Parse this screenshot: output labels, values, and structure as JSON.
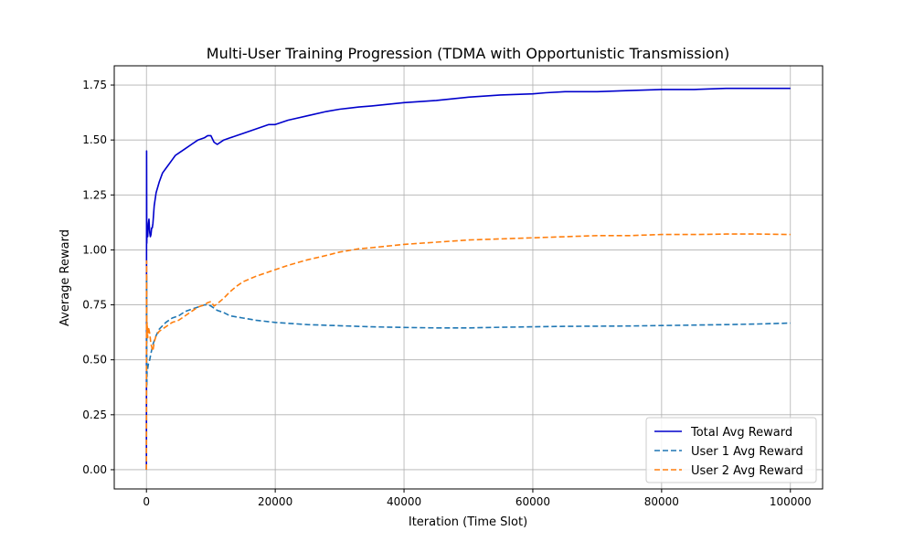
{
  "chart_data": {
    "type": "line",
    "title": "Multi-User Training Progression (TDMA with Opportunistic Transmission)",
    "xlabel": "Iteration (Time Slot)",
    "ylabel": "Average Reward",
    "xlim": [
      -5000,
      105000
    ],
    "ylim": [
      -0.0875,
      1.8375
    ],
    "xticks": [
      0,
      20000,
      40000,
      60000,
      80000,
      100000
    ],
    "yticks": [
      0.0,
      0.25,
      0.5,
      0.75,
      1.0,
      1.25,
      1.5,
      1.75
    ],
    "grid": true,
    "legend_position": "lower-right",
    "series": [
      {
        "name": "Total Avg Reward",
        "color": "#0000cc",
        "style": "solid",
        "x": [
          0,
          20,
          50,
          100,
          200,
          300,
          400,
          500,
          600,
          700,
          800,
          900,
          1000,
          1200,
          1500,
          2000,
          2500,
          3000,
          3500,
          4000,
          4500,
          5000,
          5500,
          6000,
          7000,
          8000,
          9000,
          9500,
          10000,
          10500,
          11000,
          12000,
          13000,
          14000,
          15000,
          17000,
          19000,
          20000,
          22000,
          25000,
          28000,
          30000,
          33000,
          35000,
          40000,
          45000,
          50000,
          55000,
          60000,
          62000,
          65000,
          70000,
          75000,
          80000,
          85000,
          90000,
          95000,
          100000
        ],
        "y": [
          0.0,
          1.45,
          1.03,
          1.1,
          1.06,
          1.12,
          1.14,
          1.08,
          1.06,
          1.07,
          1.1,
          1.1,
          1.12,
          1.2,
          1.26,
          1.31,
          1.35,
          1.37,
          1.39,
          1.41,
          1.43,
          1.44,
          1.45,
          1.46,
          1.48,
          1.5,
          1.51,
          1.52,
          1.52,
          1.49,
          1.48,
          1.5,
          1.51,
          1.52,
          1.53,
          1.55,
          1.57,
          1.57,
          1.59,
          1.61,
          1.63,
          1.64,
          1.65,
          1.655,
          1.67,
          1.68,
          1.695,
          1.705,
          1.71,
          1.715,
          1.72,
          1.72,
          1.725,
          1.73,
          1.73,
          1.735,
          1.735,
          1.735
        ]
      },
      {
        "name": "User 1 Avg Reward",
        "color": "#1f77b4",
        "style": "dashed",
        "x": [
          0,
          20,
          50,
          100,
          200,
          300,
          500,
          700,
          1000,
          1500,
          2000,
          3000,
          4000,
          5000,
          6000,
          7000,
          8000,
          9000,
          9500,
          10000,
          10500,
          11000,
          12000,
          13000,
          15000,
          17000,
          20000,
          25000,
          30000,
          35000,
          40000,
          45000,
          50000,
          55000,
          60000,
          65000,
          70000,
          75000,
          80000,
          85000,
          90000,
          95000,
          100000
        ],
        "y": [
          0.0,
          0.88,
          0.38,
          0.45,
          0.46,
          0.48,
          0.5,
          0.53,
          0.57,
          0.61,
          0.64,
          0.67,
          0.69,
          0.7,
          0.72,
          0.73,
          0.74,
          0.75,
          0.75,
          0.745,
          0.735,
          0.725,
          0.715,
          0.7,
          0.69,
          0.68,
          0.67,
          0.66,
          0.655,
          0.65,
          0.647,
          0.645,
          0.645,
          0.648,
          0.65,
          0.652,
          0.653,
          0.654,
          0.656,
          0.658,
          0.66,
          0.663,
          0.667
        ]
      },
      {
        "name": "User 2 Avg Reward",
        "color": "#ff7f0e",
        "style": "dashed",
        "x": [
          0,
          20,
          50,
          100,
          200,
          300,
          500,
          700,
          900,
          1000,
          1200,
          1500,
          2000,
          3000,
          4000,
          5000,
          6000,
          7000,
          8000,
          9000,
          9500,
          10000,
          10500,
          11000,
          12000,
          13000,
          14000,
          15000,
          17000,
          20000,
          22000,
          25000,
          28000,
          30000,
          33000,
          35000,
          40000,
          45000,
          50000,
          55000,
          60000,
          65000,
          70000,
          75000,
          80000,
          85000,
          90000,
          95000,
          100000
        ],
        "y": [
          0.0,
          0.95,
          0.6,
          0.67,
          0.6,
          0.65,
          0.62,
          0.57,
          0.55,
          0.54,
          0.58,
          0.61,
          0.63,
          0.65,
          0.67,
          0.68,
          0.7,
          0.72,
          0.74,
          0.75,
          0.76,
          0.765,
          0.745,
          0.755,
          0.78,
          0.81,
          0.835,
          0.855,
          0.88,
          0.91,
          0.93,
          0.955,
          0.975,
          0.99,
          1.005,
          1.01,
          1.025,
          1.035,
          1.045,
          1.05,
          1.055,
          1.06,
          1.065,
          1.065,
          1.07,
          1.07,
          1.072,
          1.072,
          1.07
        ]
      }
    ]
  }
}
